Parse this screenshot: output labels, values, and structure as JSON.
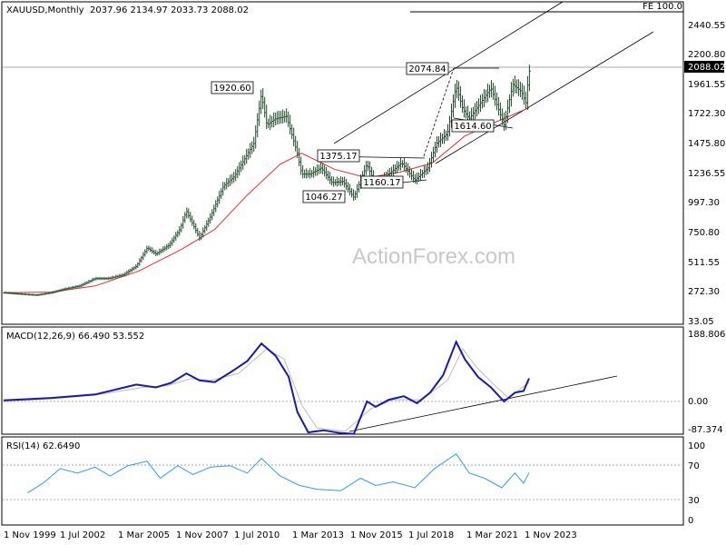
{
  "chart_data": [
    {
      "type": "candlestick",
      "header": "XAUUSD,Monthly",
      "ohlc_header": "2037.96 2134.97 2033.73 2088.02",
      "watermark": "ActionForex.com",
      "fe_label": "FE 100.0",
      "current_price_label": "2088.02",
      "y_ticks": [
        "2440.55",
        "2200.80",
        "1961.55",
        "1722.30",
        "1475.80",
        "1236.55",
        "997.30",
        "750.80",
        "511.55",
        "272.30",
        "33.05"
      ],
      "ylim": [
        33.05,
        2620
      ],
      "price_labels": [
        {
          "text": "1920.60",
          "price": 1920.6
        },
        {
          "text": "2074.84",
          "price": 2074.84
        },
        {
          "text": "1375.17",
          "price": 1375.17
        },
        {
          "text": "1046.27",
          "price": 1046.27
        },
        {
          "text": "1160.17",
          "price": 1160.17
        },
        {
          "text": "1614.60",
          "price": 1614.6
        }
      ],
      "price_series": [
        {
          "t": 1999.8,
          "p": 285
        },
        {
          "t": 2000.5,
          "p": 275
        },
        {
          "t": 2001.3,
          "p": 265
        },
        {
          "t": 2002.0,
          "p": 285
        },
        {
          "t": 2002.6,
          "p": 315
        },
        {
          "t": 2003.3,
          "p": 340
        },
        {
          "t": 2004.0,
          "p": 400
        },
        {
          "t": 2004.6,
          "p": 400
        },
        {
          "t": 2005.3,
          "p": 430
        },
        {
          "t": 2005.9,
          "p": 500
        },
        {
          "t": 2006.4,
          "p": 650
        },
        {
          "t": 2006.8,
          "p": 600
        },
        {
          "t": 2007.4,
          "p": 670
        },
        {
          "t": 2007.9,
          "p": 800
        },
        {
          "t": 2008.2,
          "p": 950
        },
        {
          "t": 2008.8,
          "p": 730
        },
        {
          "t": 2009.3,
          "p": 900
        },
        {
          "t": 2009.9,
          "p": 1150
        },
        {
          "t": 2010.4,
          "p": 1230
        },
        {
          "t": 2010.9,
          "p": 1380
        },
        {
          "t": 2011.3,
          "p": 1500
        },
        {
          "t": 2011.65,
          "p": 1900
        },
        {
          "t": 2011.9,
          "p": 1650
        },
        {
          "t": 2012.3,
          "p": 1700
        },
        {
          "t": 2012.8,
          "p": 1720
        },
        {
          "t": 2013.3,
          "p": 1420
        },
        {
          "t": 2013.5,
          "p": 1250
        },
        {
          "t": 2013.9,
          "p": 1250
        },
        {
          "t": 2014.4,
          "p": 1300
        },
        {
          "t": 2014.9,
          "p": 1180
        },
        {
          "t": 2015.4,
          "p": 1190
        },
        {
          "t": 2015.9,
          "p": 1060
        },
        {
          "t": 2016.5,
          "p": 1330
        },
        {
          "t": 2016.9,
          "p": 1160
        },
        {
          "t": 2017.5,
          "p": 1250
        },
        {
          "t": 2018.1,
          "p": 1340
        },
        {
          "t": 2018.7,
          "p": 1200
        },
        {
          "t": 2019.3,
          "p": 1300
        },
        {
          "t": 2019.7,
          "p": 1500
        },
        {
          "t": 2020.2,
          "p": 1580
        },
        {
          "t": 2020.6,
          "p": 1970
        },
        {
          "t": 2020.9,
          "p": 1780
        },
        {
          "t": 2021.2,
          "p": 1700
        },
        {
          "t": 2021.6,
          "p": 1800
        },
        {
          "t": 2022.2,
          "p": 1950
        },
        {
          "t": 2022.8,
          "p": 1650
        },
        {
          "t": 2023.2,
          "p": 1980
        },
        {
          "t": 2023.6,
          "p": 1920
        },
        {
          "t": 2023.8,
          "p": 1830
        },
        {
          "t": 2023.95,
          "p": 2088
        }
      ],
      "moving_average": [
        {
          "t": 1999.8,
          "p": 285
        },
        {
          "t": 2002.0,
          "p": 290
        },
        {
          "t": 2004.0,
          "p": 340
        },
        {
          "t": 2006.0,
          "p": 460
        },
        {
          "t": 2008.0,
          "p": 640
        },
        {
          "t": 2009.5,
          "p": 800
        },
        {
          "t": 2011.0,
          "p": 1080
        },
        {
          "t": 2012.5,
          "p": 1330
        },
        {
          "t": 2013.5,
          "p": 1420
        },
        {
          "t": 2015.0,
          "p": 1290
        },
        {
          "t": 2016.5,
          "p": 1220
        },
        {
          "t": 2018.0,
          "p": 1265
        },
        {
          "t": 2019.5,
          "p": 1340
        },
        {
          "t": 2021.0,
          "p": 1560
        },
        {
          "t": 2022.5,
          "p": 1680
        },
        {
          "t": 2023.95,
          "p": 1790
        }
      ],
      "x_ticks": [
        "1 Nov 1999",
        "1 Jul 2002",
        "1 Mar 2005",
        "1 Nov 2007",
        "1 Jul 2010",
        "1 Mar 2013",
        "1 Nov 2015",
        "1 Jul 2018",
        "1 Mar 2021",
        "1 Nov 2023"
      ]
    },
    {
      "type": "line",
      "header": "MACD(12,26,9) 66.490 53.552",
      "y_ticks": [
        "188.806",
        "0.00",
        "-87.374"
      ],
      "ylim": [
        -87.374,
        188.806
      ],
      "macd": [
        {
          "t": 1999.8,
          "v": 3
        },
        {
          "t": 2002.0,
          "v": 10
        },
        {
          "t": 2004.0,
          "v": 20
        },
        {
          "t": 2005.9,
          "v": 48
        },
        {
          "t": 2006.8,
          "v": 40
        },
        {
          "t": 2007.5,
          "v": 53
        },
        {
          "t": 2008.2,
          "v": 80
        },
        {
          "t": 2008.8,
          "v": 60
        },
        {
          "t": 2009.5,
          "v": 55
        },
        {
          "t": 2010.4,
          "v": 90
        },
        {
          "t": 2011.0,
          "v": 115
        },
        {
          "t": 2011.65,
          "v": 165
        },
        {
          "t": 2012.3,
          "v": 130
        },
        {
          "t": 2012.9,
          "v": 70
        },
        {
          "t": 2013.3,
          "v": -30
        },
        {
          "t": 2013.8,
          "v": -88
        },
        {
          "t": 2014.5,
          "v": -82
        },
        {
          "t": 2015.3,
          "v": -90
        },
        {
          "t": 2015.9,
          "v": -92
        },
        {
          "t": 2016.5,
          "v": 0
        },
        {
          "t": 2016.9,
          "v": -15
        },
        {
          "t": 2017.5,
          "v": 5
        },
        {
          "t": 2018.2,
          "v": 15
        },
        {
          "t": 2018.8,
          "v": -5
        },
        {
          "t": 2019.4,
          "v": 25
        },
        {
          "t": 2020.0,
          "v": 75
        },
        {
          "t": 2020.6,
          "v": 170
        },
        {
          "t": 2021.0,
          "v": 120
        },
        {
          "t": 2021.6,
          "v": 70
        },
        {
          "t": 2022.2,
          "v": 40
        },
        {
          "t": 2022.8,
          "v": 0
        },
        {
          "t": 2023.3,
          "v": 25
        },
        {
          "t": 2023.7,
          "v": 30
        },
        {
          "t": 2023.95,
          "v": 66
        }
      ],
      "signal": [
        {
          "t": 1999.8,
          "v": 0
        },
        {
          "t": 2002.0,
          "v": 8
        },
        {
          "t": 2004.0,
          "v": 18
        },
        {
          "t": 2006.2,
          "v": 40
        },
        {
          "t": 2007.3,
          "v": 45
        },
        {
          "t": 2008.4,
          "v": 65
        },
        {
          "t": 2009.3,
          "v": 60
        },
        {
          "t": 2010.6,
          "v": 80
        },
        {
          "t": 2011.9,
          "v": 150
        },
        {
          "t": 2012.7,
          "v": 120
        },
        {
          "t": 2013.5,
          "v": -10
        },
        {
          "t": 2014.2,
          "v": -75
        },
        {
          "t": 2015.5,
          "v": -85
        },
        {
          "t": 2016.7,
          "v": -20
        },
        {
          "t": 2017.7,
          "v": 5
        },
        {
          "t": 2019.0,
          "v": 5
        },
        {
          "t": 2020.2,
          "v": 60
        },
        {
          "t": 2020.9,
          "v": 150
        },
        {
          "t": 2021.5,
          "v": 100
        },
        {
          "t": 2022.3,
          "v": 50
        },
        {
          "t": 2023.0,
          "v": 10
        },
        {
          "t": 2023.95,
          "v": 54
        }
      ]
    },
    {
      "type": "line",
      "header": "RSI(14) 62.6490",
      "y_ticks": [
        "100",
        "70",
        "30",
        "0"
      ],
      "ylim": [
        0,
        100
      ],
      "rsi": [
        {
          "t": 2000.9,
          "v": 35
        },
        {
          "t": 2001.6,
          "v": 48
        },
        {
          "t": 2002.4,
          "v": 68
        },
        {
          "t": 2003.2,
          "v": 62
        },
        {
          "t": 2004.0,
          "v": 70
        },
        {
          "t": 2004.7,
          "v": 58
        },
        {
          "t": 2005.5,
          "v": 72
        },
        {
          "t": 2006.4,
          "v": 78
        },
        {
          "t": 2007.0,
          "v": 55
        },
        {
          "t": 2007.8,
          "v": 72
        },
        {
          "t": 2008.5,
          "v": 60
        },
        {
          "t": 2009.3,
          "v": 70
        },
        {
          "t": 2010.2,
          "v": 72
        },
        {
          "t": 2011.0,
          "v": 62
        },
        {
          "t": 2011.65,
          "v": 82
        },
        {
          "t": 2012.5,
          "v": 58
        },
        {
          "t": 2013.4,
          "v": 45
        },
        {
          "t": 2014.2,
          "v": 40
        },
        {
          "t": 2015.3,
          "v": 38
        },
        {
          "t": 2016.2,
          "v": 55
        },
        {
          "t": 2016.9,
          "v": 45
        },
        {
          "t": 2017.7,
          "v": 50
        },
        {
          "t": 2018.7,
          "v": 42
        },
        {
          "t": 2019.6,
          "v": 68
        },
        {
          "t": 2020.6,
          "v": 88
        },
        {
          "t": 2021.2,
          "v": 62
        },
        {
          "t": 2021.9,
          "v": 55
        },
        {
          "t": 2022.7,
          "v": 42
        },
        {
          "t": 2023.3,
          "v": 62
        },
        {
          "t": 2023.7,
          "v": 48
        },
        {
          "t": 2023.95,
          "v": 62.649
        }
      ]
    }
  ]
}
